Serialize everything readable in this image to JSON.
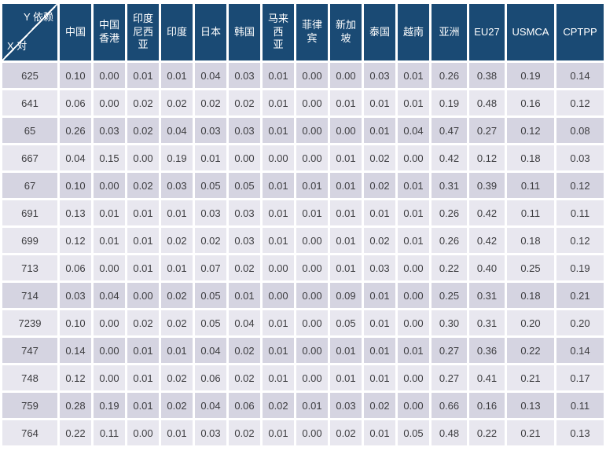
{
  "colors": {
    "header_bg": "#1a4a74",
    "row_shaded": "#d5d4e1",
    "row_light": "#e8e7ef",
    "text": "#3d3d40",
    "header_text": "#ffffff"
  },
  "chart_data": {
    "type": "table",
    "corner": {
      "y_label": "Y 依赖",
      "x_label": "X 对"
    },
    "columns": [
      "中国",
      "中国\n香港",
      "印度\n尼西\n亚",
      "印度",
      "日本",
      "韩国",
      "马来西\n亚",
      "菲律\n宾",
      "新加\n坡",
      "泰国",
      "越南",
      "亚洲",
      "EU27",
      "USMCA",
      "CPTPP"
    ],
    "row_labels": [
      "625",
      "641",
      "65",
      "667",
      "67",
      "691",
      "699",
      "713",
      "714",
      "7239",
      "747",
      "748",
      "759",
      "764"
    ],
    "rows": [
      [
        "0.10",
        "0.00",
        "0.01",
        "0.01",
        "0.04",
        "0.03",
        "0.01",
        "0.00",
        "0.00",
        "0.03",
        "0.01",
        "0.26",
        "0.38",
        "0.19",
        "0.14"
      ],
      [
        "0.06",
        "0.00",
        "0.02",
        "0.02",
        "0.02",
        "0.02",
        "0.01",
        "0.00",
        "0.01",
        "0.01",
        "0.01",
        "0.19",
        "0.48",
        "0.16",
        "0.12"
      ],
      [
        "0.26",
        "0.03",
        "0.02",
        "0.04",
        "0.03",
        "0.03",
        "0.01",
        "0.00",
        "0.00",
        "0.01",
        "0.04",
        "0.47",
        "0.27",
        "0.12",
        "0.08"
      ],
      [
        "0.04",
        "0.15",
        "0.00",
        "0.19",
        "0.01",
        "0.00",
        "0.00",
        "0.00",
        "0.01",
        "0.02",
        "0.00",
        "0.42",
        "0.12",
        "0.18",
        "0.03"
      ],
      [
        "0.10",
        "0.00",
        "0.02",
        "0.03",
        "0.05",
        "0.05",
        "0.01",
        "0.01",
        "0.01",
        "0.02",
        "0.01",
        "0.31",
        "0.39",
        "0.11",
        "0.12"
      ],
      [
        "0.13",
        "0.01",
        "0.01",
        "0.01",
        "0.03",
        "0.03",
        "0.01",
        "0.01",
        "0.01",
        "0.01",
        "0.01",
        "0.26",
        "0.42",
        "0.11",
        "0.11"
      ],
      [
        "0.12",
        "0.01",
        "0.01",
        "0.02",
        "0.02",
        "0.03",
        "0.01",
        "0.00",
        "0.01",
        "0.02",
        "0.01",
        "0.26",
        "0.42",
        "0.18",
        "0.12"
      ],
      [
        "0.06",
        "0.00",
        "0.01",
        "0.01",
        "0.07",
        "0.02",
        "0.00",
        "0.00",
        "0.01",
        "0.03",
        "0.00",
        "0.22",
        "0.40",
        "0.25",
        "0.19"
      ],
      [
        "0.03",
        "0.04",
        "0.00",
        "0.02",
        "0.05",
        "0.01",
        "0.00",
        "0.00",
        "0.09",
        "0.01",
        "0.00",
        "0.25",
        "0.31",
        "0.18",
        "0.21"
      ],
      [
        "0.10",
        "0.00",
        "0.02",
        "0.02",
        "0.05",
        "0.04",
        "0.01",
        "0.00",
        "0.05",
        "0.01",
        "0.00",
        "0.30",
        "0.31",
        "0.20",
        "0.20"
      ],
      [
        "0.14",
        "0.00",
        "0.01",
        "0.01",
        "0.04",
        "0.02",
        "0.01",
        "0.00",
        "0.01",
        "0.01",
        "0.01",
        "0.27",
        "0.36",
        "0.22",
        "0.14"
      ],
      [
        "0.12",
        "0.00",
        "0.01",
        "0.02",
        "0.06",
        "0.02",
        "0.01",
        "0.00",
        "0.01",
        "0.01",
        "0.00",
        "0.27",
        "0.41",
        "0.21",
        "0.17"
      ],
      [
        "0.28",
        "0.19",
        "0.01",
        "0.02",
        "0.04",
        "0.06",
        "0.02",
        "0.01",
        "0.03",
        "0.02",
        "0.00",
        "0.66",
        "0.16",
        "0.13",
        "0.11"
      ],
      [
        "0.22",
        "0.11",
        "0.00",
        "0.01",
        "0.03",
        "0.02",
        "0.01",
        "0.00",
        "0.02",
        "0.01",
        "0.05",
        "0.48",
        "0.22",
        "0.21",
        "0.13"
      ]
    ],
    "shaded_row_indices": [
      0,
      2,
      4,
      8,
      10,
      12
    ],
    "layout_hints": {
      "grid": "white gaps between cells",
      "header_position": "top",
      "row_label_position": "left"
    }
  }
}
